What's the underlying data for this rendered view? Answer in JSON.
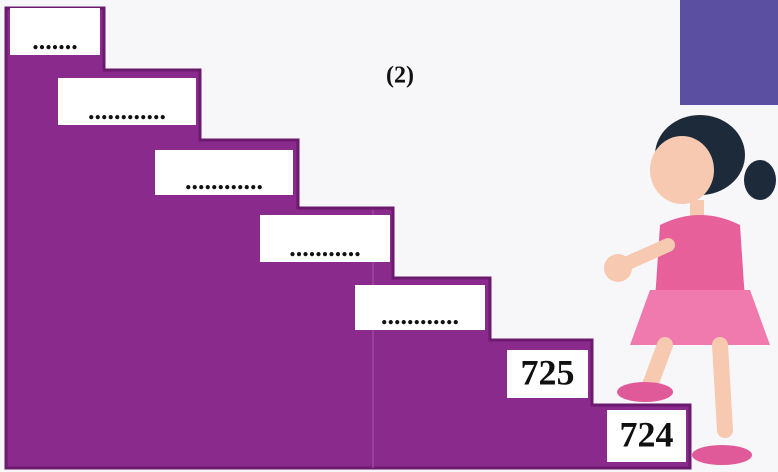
{
  "label": "(2)",
  "steps": [
    ".......",
    "............",
    "............",
    "...........",
    "............",
    "725",
    "724"
  ]
}
